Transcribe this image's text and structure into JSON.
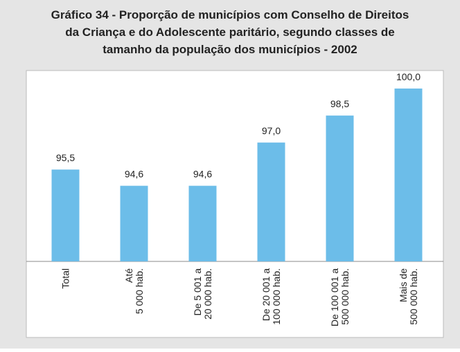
{
  "chart_data": {
    "type": "bar",
    "title": [
      "Gráfico 34 - Proporção de municípios com Conselho de Direitos",
      "da Criança e do Adolescente paritário, segundo classes de",
      "tamanho da população dos municípios - 2002"
    ],
    "categories": [
      "Total",
      "Até\n5 000 hab.",
      "De 5 001 a\n20 000 hab.",
      "De 20 001 a\n100 000 hab.",
      "De 100 001 a\n500 000 hab.",
      "Mais de\n500 000 hab."
    ],
    "values": [
      95.5,
      94.6,
      94.6,
      97.0,
      98.5,
      100.0
    ],
    "value_labels": [
      "95,5",
      "94,6",
      "94,6",
      "97,0",
      "98,5",
      "100,0"
    ],
    "color": "#6cbde9",
    "ylim": [
      90.4,
      101
    ]
  }
}
